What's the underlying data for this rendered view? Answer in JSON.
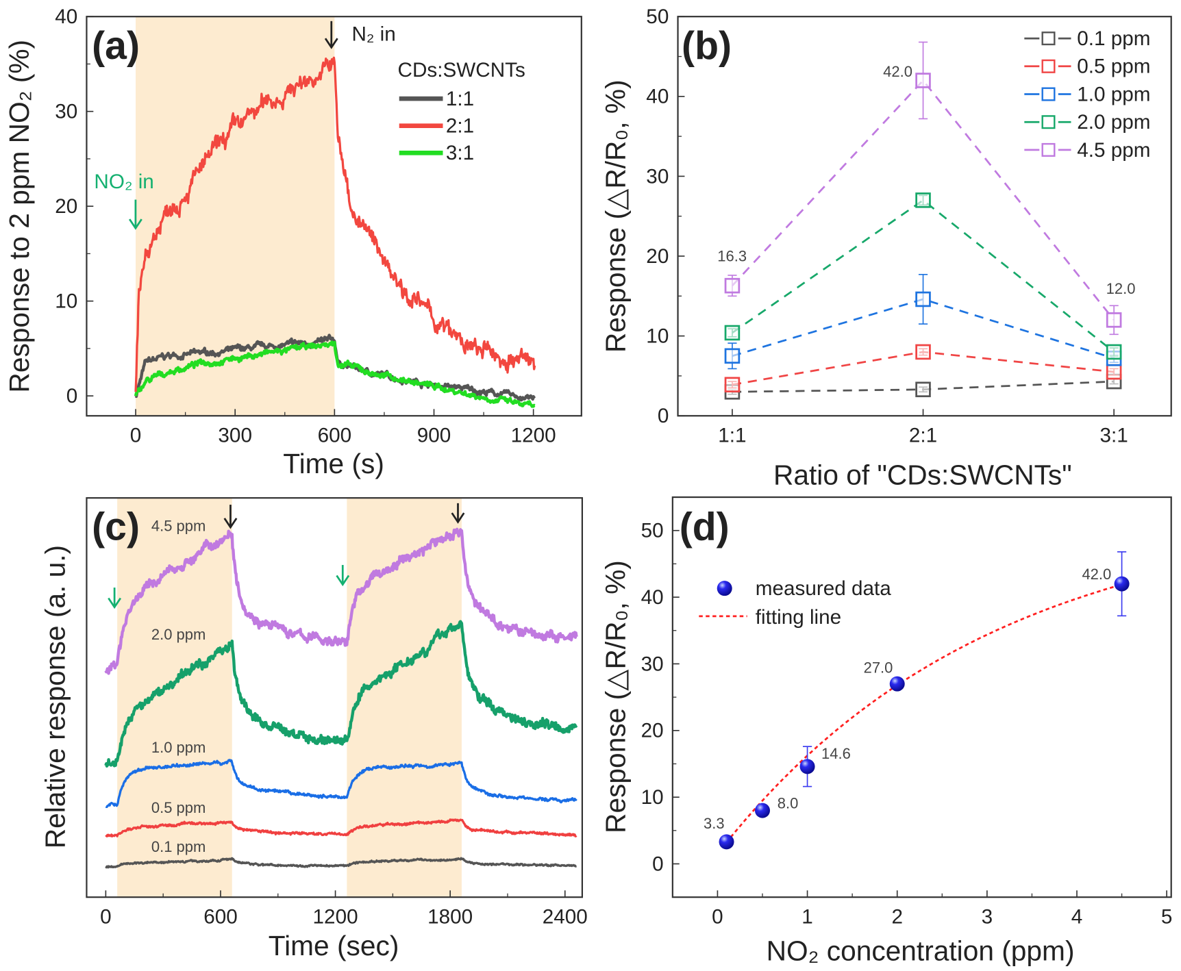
{
  "chart_data": [
    {
      "panel": "(a)",
      "type": "line",
      "xlabel": "Time (s)",
      "ylabel": "Response to 2 ppm NO₂ (%)",
      "xlim": [
        -148,
        1345
      ],
      "ylim": [
        -2.1,
        40
      ],
      "xticks": [
        0,
        300,
        600,
        900,
        1200
      ],
      "yticks": [
        0,
        10,
        20,
        30,
        40
      ],
      "shaded_interval": [
        0,
        600
      ],
      "legend_title": "CDs:SWCNTs",
      "legend_position": "top-right",
      "annotations": {
        "no2_in": "NO₂ in",
        "n2_in": "N₂ in"
      },
      "series": [
        {
          "name": "1:1",
          "color": "#555555",
          "t": [
            0,
            30,
            100,
            300,
            500,
            600,
            610,
            700,
            900,
            1200
          ],
          "y": [
            0,
            3.5,
            4.2,
            4.8,
            5.5,
            5.8,
            3.5,
            2.5,
            1.2,
            -0.3
          ]
        },
        {
          "name": "2:1",
          "color": "#f2473f",
          "t": [
            0,
            10,
            30,
            100,
            200,
            300,
            400,
            500,
            600,
            610,
            650,
            700,
            800,
            900,
            1000,
            1100,
            1200
          ],
          "y": [
            0,
            10,
            15,
            20,
            24,
            28,
            31,
            33,
            35,
            27,
            20,
            17,
            12,
            8,
            5,
            4,
            3.5
          ]
        },
        {
          "name": "3:1",
          "color": "#22dd22",
          "t": [
            0,
            30,
            100,
            200,
            400,
            600,
            610,
            700,
            900,
            1200
          ],
          "y": [
            0,
            1.5,
            2.5,
            3.5,
            4.5,
            5.5,
            3.5,
            2.5,
            1.0,
            -1.2
          ]
        }
      ]
    },
    {
      "panel": "(b)",
      "type": "line",
      "xlabel": "Ratio of \"CDs:SWCNTs\"",
      "ylabel": "Response (△R/R₀, %)",
      "categories": [
        "1:1",
        "2:1",
        "3:1"
      ],
      "ylim": [
        0,
        50
      ],
      "yticks": [
        0,
        10,
        20,
        30,
        40,
        50
      ],
      "legend_position": "top-right",
      "series": [
        {
          "name": "0.1 ppm",
          "color": "#555555",
          "values": [
            3.0,
            3.3,
            4.3
          ],
          "err": [
            0.3,
            0.3,
            0.3
          ]
        },
        {
          "name": "0.5 ppm",
          "color": "#f04545",
          "values": [
            3.9,
            8.0,
            5.5
          ],
          "err": [
            0.4,
            0.4,
            0.4
          ]
        },
        {
          "name": "1.0 ppm",
          "color": "#1e74e0",
          "values": [
            7.5,
            14.6,
            7.2
          ],
          "err": [
            1.6,
            3.1,
            0.5
          ]
        },
        {
          "name": "2.0 ppm",
          "color": "#17a86a",
          "values": [
            10.4,
            27.0,
            8.0
          ],
          "err": [
            0.5,
            0.6,
            0.5
          ]
        },
        {
          "name": "4.5 ppm",
          "color": "#c07ae0",
          "values": [
            16.3,
            42.0,
            12.0
          ],
          "err": [
            1.3,
            4.8,
            1.8
          ]
        }
      ],
      "data_labels": [
        "16.3",
        "42.0",
        "12.0"
      ]
    },
    {
      "panel": "(c)",
      "type": "line",
      "xlabel": "Time (sec)",
      "ylabel": "Relative response (a. u.)",
      "xlim": [
        -100,
        2490
      ],
      "ylim": [
        0,
        100
      ],
      "xticks": [
        0,
        600,
        1200,
        1800,
        2400
      ],
      "shaded_intervals": [
        [
          60,
          660
        ],
        [
          1260,
          1860
        ]
      ],
      "series": [
        {
          "name": "4.5 ppm",
          "color": "#c07ae0",
          "base": 57.5,
          "peak1": 91.5,
          "valley1": 63.5,
          "peak2": 92.5,
          "valley2": 64
        },
        {
          "name": "2.0 ppm",
          "color": "#16a06a",
          "base": 33,
          "peak1": 64,
          "valley1": 38.7,
          "peak2": 69,
          "valley2": 42.5
        },
        {
          "name": "1.0 ppm",
          "color": "#1a6ee6",
          "base": 23,
          "peak1": 34,
          "valley1": 25,
          "peak2": 33.6,
          "valley2": 24
        },
        {
          "name": "0.5 ppm",
          "color": "#f04040",
          "base": 15.5,
          "peak1": 18.9,
          "valley1": 15.8,
          "peak2": 19.2,
          "valley2": 15.8
        },
        {
          "name": "0.1 ppm",
          "color": "#555555",
          "base": 7.5,
          "peak1": 9.4,
          "valley1": 7.9,
          "peak2": 9.6,
          "valley2": 7.9
        }
      ]
    },
    {
      "panel": "(d)",
      "type": "scatter",
      "xlabel": "NO₂ concentration (ppm)",
      "ylabel": "Response (△R/R₀, %)",
      "xlim": [
        -0.5,
        5.05
      ],
      "ylim": [
        -5,
        55
      ],
      "xticks": [
        0,
        1,
        2,
        3,
        4,
        5
      ],
      "yticks": [
        0,
        10,
        20,
        30,
        40,
        50
      ],
      "legend_position": "top-left",
      "series": [
        {
          "name": "measured data",
          "color": "#1a1ae0",
          "x": [
            0.1,
            0.5,
            1.0,
            2.0,
            4.5
          ],
          "y": [
            3.3,
            8.0,
            14.6,
            27.0,
            42.0
          ],
          "err": [
            0.4,
            0.4,
            3.0,
            0.6,
            4.8
          ],
          "labels": [
            "3.3",
            "8.0",
            "14.6",
            "27.0",
            "42.0"
          ]
        },
        {
          "name": "fitting line",
          "color": "#ff2020"
        }
      ]
    }
  ]
}
